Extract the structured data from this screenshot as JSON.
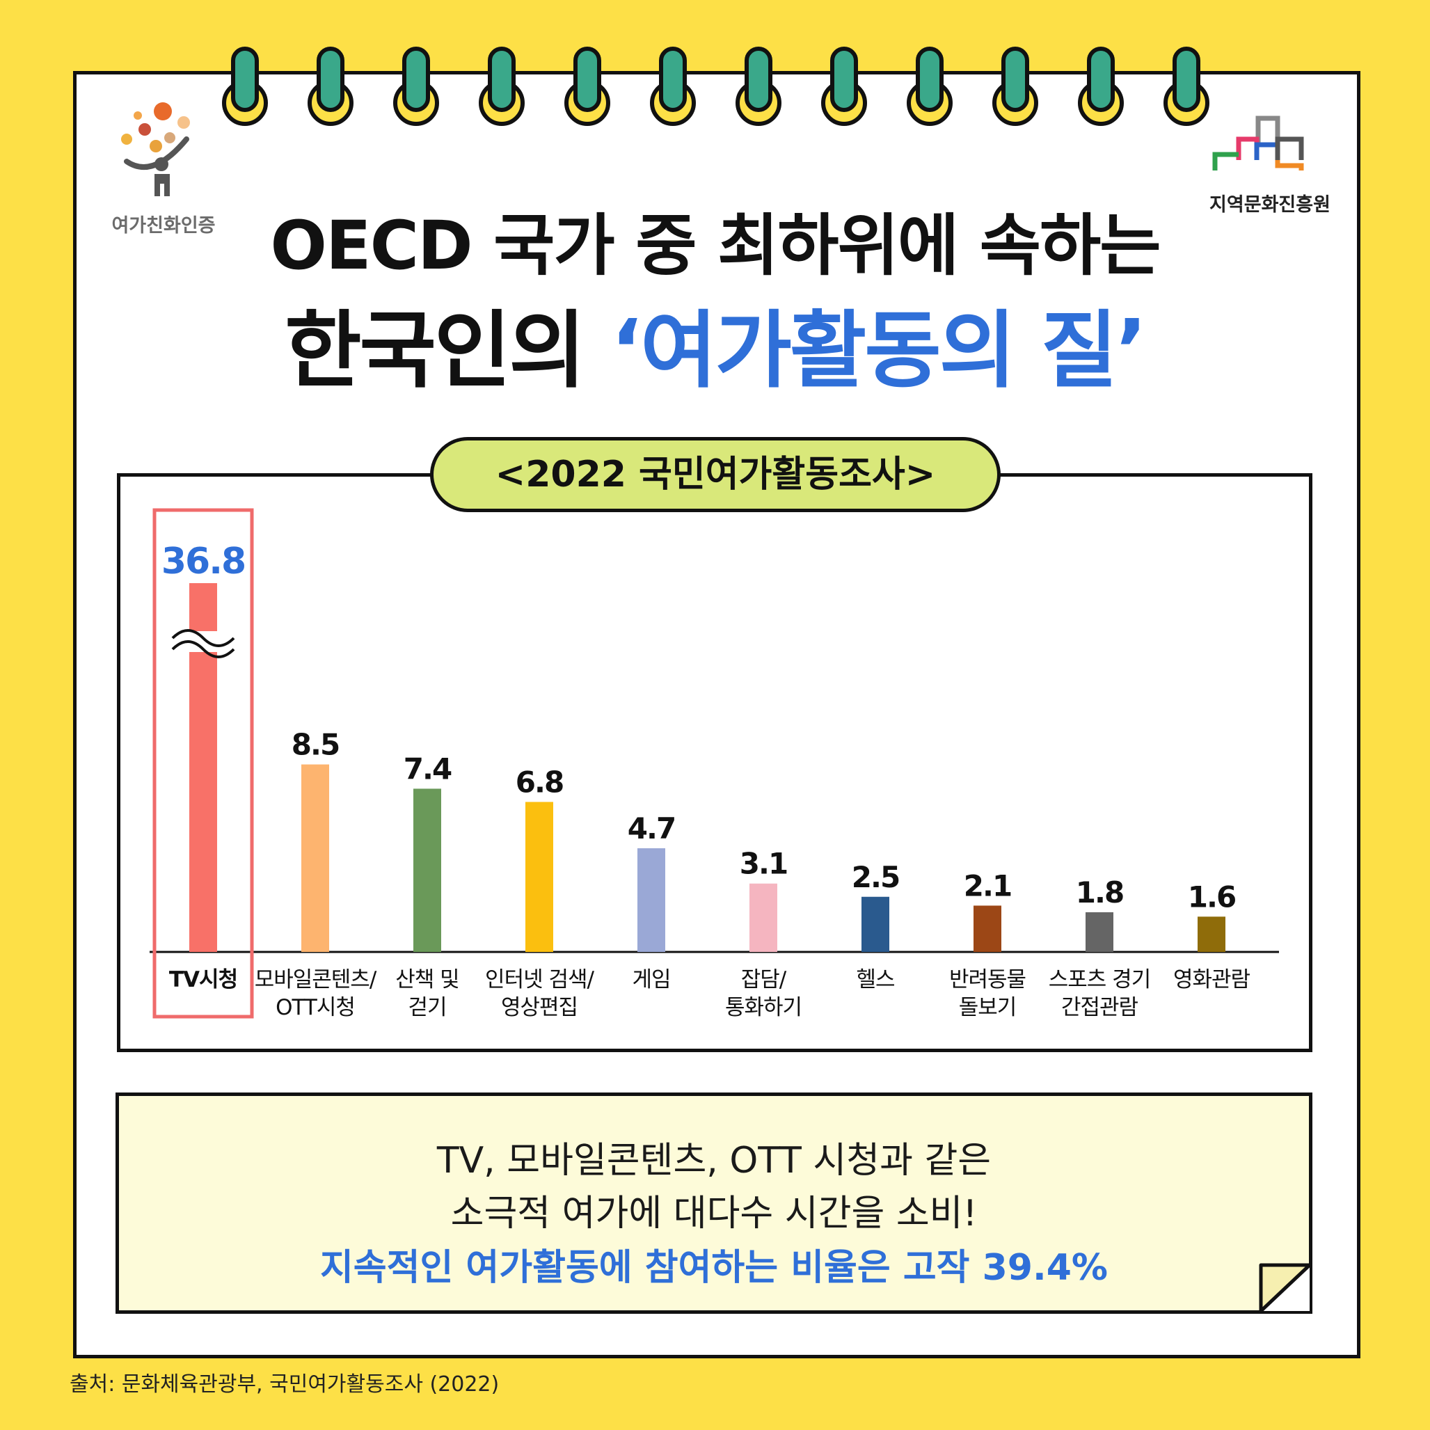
{
  "logos": {
    "left_label": "여가친화인증",
    "right_label": "지역문화진흥원"
  },
  "title": {
    "line1": "OECD 국가 중 최하위에 속하는",
    "line2_prefix": "한국인의 ",
    "line2_highlight": "‘여가활동의 질’"
  },
  "chart_data": {
    "type": "bar",
    "title": "<2022 국민여가활동조사>",
    "categories": [
      [
        "TV시청"
      ],
      [
        "모바일콘텐츠/",
        "OTT시청"
      ],
      [
        "산책 및",
        "걷기"
      ],
      [
        "인터넷 검색/",
        "영상편집"
      ],
      [
        "게임"
      ],
      [
        "잡담/",
        "통화하기"
      ],
      [
        "헬스"
      ],
      [
        "반려동물",
        "돌보기"
      ],
      [
        "스포츠 경기",
        "간접관람"
      ],
      [
        "영화관람"
      ]
    ],
    "values": [
      36.8,
      8.5,
      7.4,
      6.8,
      4.7,
      3.1,
      2.5,
      2.1,
      1.8,
      1.6
    ],
    "value_labels": [
      "36.8",
      "8.5",
      "7.4",
      "6.8",
      "4.7",
      "3.1",
      "2.5",
      "2.1",
      "1.8",
      "1.6"
    ],
    "colors": [
      "#f87168",
      "#fdb46f",
      "#6a9959",
      "#fbbf0f",
      "#9aa8d6",
      "#f5b5c0",
      "#2a5a8e",
      "#9c4716",
      "#656565",
      "#8f6c0a"
    ],
    "highlight_index": 0,
    "highlight_label_color": "#2f6fd8",
    "axis_break_on": 0,
    "xlabel": "",
    "ylabel": ""
  },
  "note": {
    "line1": "TV, 모바일콘텐츠, OTT 시청과 같은",
    "line2": "소극적 여가에 대다수 시간을 소비!",
    "line3": "지속적인 여가활동에 참여하는 비율은 고작 39.4%"
  },
  "source": "출처: 문화체육관광부, 국민여가활동조사 (2022)"
}
